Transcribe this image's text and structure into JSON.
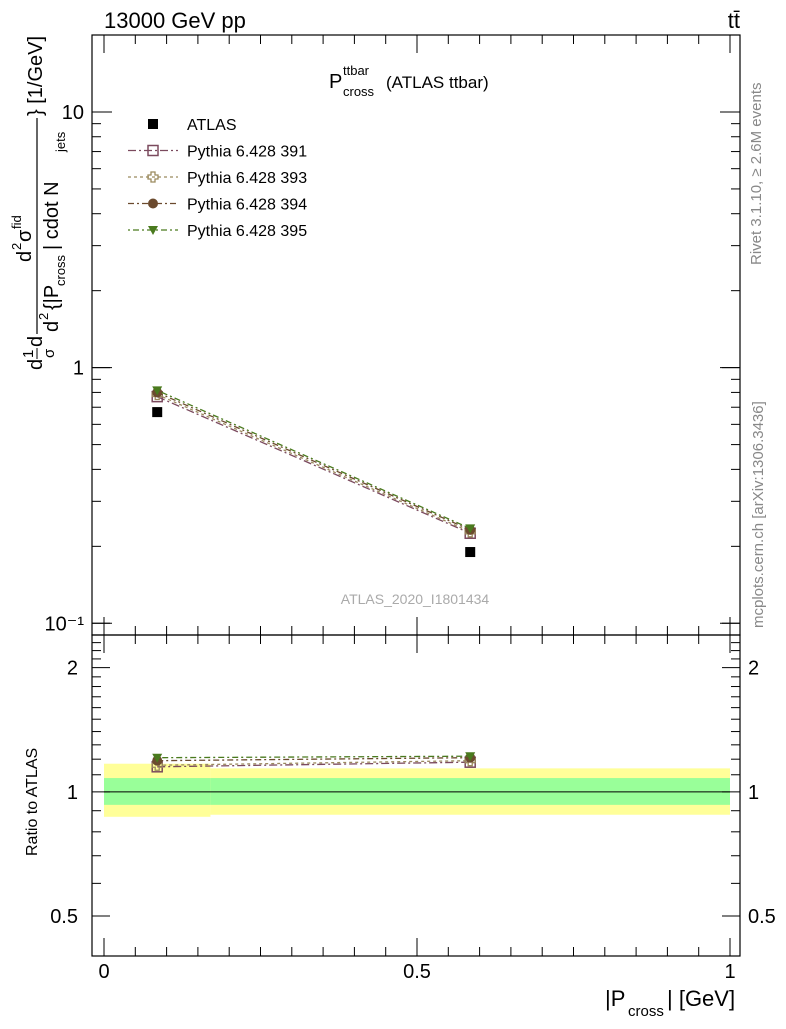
{
  "header": {
    "left": "13000 GeV pp",
    "right": "tt̄"
  },
  "side_labels": {
    "rivet": "Rivet 3.1.10, ≥ 2.6M events",
    "mcplots": "mcplots.cern.ch [arXiv:1306.3436]"
  },
  "chart_data": [
    {
      "type": "scatter",
      "panel": "main",
      "title_main": "P",
      "title_sup": "ttbar",
      "title_sub": "cross",
      "title_tail": "(ATLAS ttbar)",
      "watermark": "ATLAS_2020_I1801434",
      "ylabel_main": "d",
      "ylabel_sup": "2",
      "ylabel_parts": [
        "1",
        "σ",
        "d",
        "σ",
        "fid",
        "{|P",
        "cross",
        "| cdot N",
        "jets",
        "} [1/GeV]"
      ],
      "yscale": "log",
      "ylim": [
        0.09,
        20
      ],
      "xlim": [
        0,
        1
      ],
      "yticks": [
        {
          "value": 10,
          "label": "10"
        },
        {
          "value": 1,
          "label": "1"
        },
        {
          "value": 0.1,
          "label": "10⁻¹"
        }
      ],
      "series": [
        {
          "name": "ATLAS",
          "marker": "filled-square",
          "color": "#000000",
          "x": [
            0.085,
            0.585
          ],
          "values": [
            0.67,
            0.19
          ]
        },
        {
          "name": "Pythia 6.428 391",
          "marker": "open-square",
          "color": "#7b4a5e",
          "dash": "8,3,2,3",
          "x": [
            0.085,
            0.585
          ],
          "values": [
            0.77,
            0.225
          ]
        },
        {
          "name": "Pythia 6.428 393",
          "marker": "open-cross",
          "color": "#9b8a5e",
          "dash": "3,3",
          "x": [
            0.085,
            0.585
          ],
          "values": [
            0.785,
            0.228
          ]
        },
        {
          "name": "Pythia 6.428 394",
          "marker": "filled-circle",
          "color": "#6b4a2e",
          "dash": "6,3,2,3",
          "x": [
            0.085,
            0.585
          ],
          "values": [
            0.8,
            0.232
          ]
        },
        {
          "name": "Pythia 6.428 395",
          "marker": "filled-triangle-down",
          "color": "#4a7a1e",
          "dash": "2,3,6,3",
          "x": [
            0.085,
            0.585
          ],
          "values": [
            0.815,
            0.235
          ]
        }
      ]
    },
    {
      "type": "scatter",
      "panel": "ratio",
      "ylabel": "Ratio to ATLAS",
      "yscale": "log",
      "ylim": [
        0.4,
        2.4
      ],
      "xlim": [
        0,
        1
      ],
      "xlabel_main": "|P",
      "xlabel_sub": "cross",
      "xlabel_tail": "| [GeV]",
      "xticks": [
        {
          "value": 0,
          "label": "0"
        },
        {
          "value": 0.5,
          "label": "0.5"
        },
        {
          "value": 1,
          "label": "1"
        }
      ],
      "yticks": [
        {
          "value": 2,
          "label": "2"
        },
        {
          "value": 1,
          "label": "1"
        },
        {
          "value": 0.5,
          "label": "0.5"
        }
      ],
      "bands": [
        {
          "x": [
            0,
            0.17
          ],
          "yellow": [
            0.87,
            1.17
          ],
          "green": [
            0.93,
            1.08
          ]
        },
        {
          "x": [
            0.17,
            1
          ],
          "yellow": [
            0.88,
            1.14
          ],
          "green": [
            0.93,
            1.08
          ]
        }
      ],
      "series": [
        {
          "name": "Pythia 6.428 391",
          "x": [
            0.085,
            0.585
          ],
          "values": [
            1.15,
            1.18
          ]
        },
        {
          "name": "Pythia 6.428 393",
          "x": [
            0.085,
            0.585
          ],
          "values": [
            1.16,
            1.19
          ]
        },
        {
          "name": "Pythia 6.428 394",
          "x": [
            0.085,
            0.585
          ],
          "values": [
            1.19,
            1.21
          ]
        },
        {
          "name": "Pythia 6.428 395",
          "x": [
            0.085,
            0.585
          ],
          "values": [
            1.21,
            1.22
          ]
        }
      ]
    }
  ]
}
